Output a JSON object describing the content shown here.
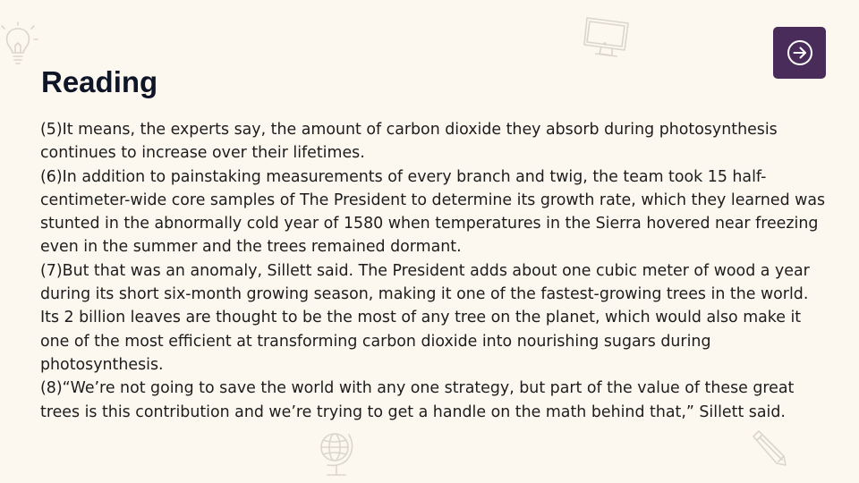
{
  "slide": {
    "title": "Reading",
    "paragraphs": [
      "(5)It means, the experts say, the amount of carbon dioxide they absorb during photosynthesis continues to increase over their lifetimes.",
      "(6)In addition to painstaking measurements of every branch and twig, the team took 15 half-centimeter-wide core samples of The President to determine its growth rate, which they learned was stunted in the abnormally cold year of 1580 when temperatures in the Sierra hovered near freezing even in the summer and the trees remained dormant.",
      "(7)But that was an anomaly, Sillett said. The President adds about one cubic meter of wood a year during its short six-month growing season, making it one of the fastest-growing trees in the world. Its 2 billion leaves are thought to be the most of any tree on the planet, which would also make it one of the most efficient at transforming carbon dioxide into nourishing sugars during photosynthesis.",
      "(8)“We’re not going to save the world with any one strategy, but part of the value of these great trees is this contribution and we’re trying to get a handle on the math behind that,” Sillett said."
    ]
  },
  "next_button": {
    "icon": "arrow-right-circle-icon",
    "background": "#4a2c5a"
  },
  "decorations": {
    "top_left": "lightbulb-icon",
    "top_center": "monitor-icon",
    "bottom_center": "globe-icon",
    "bottom_right": "pencil-icon"
  },
  "colors": {
    "background": "#fcf8ef",
    "title": "#0e1526",
    "text": "#1d1d1d",
    "decoration": "#c9c2b5"
  }
}
